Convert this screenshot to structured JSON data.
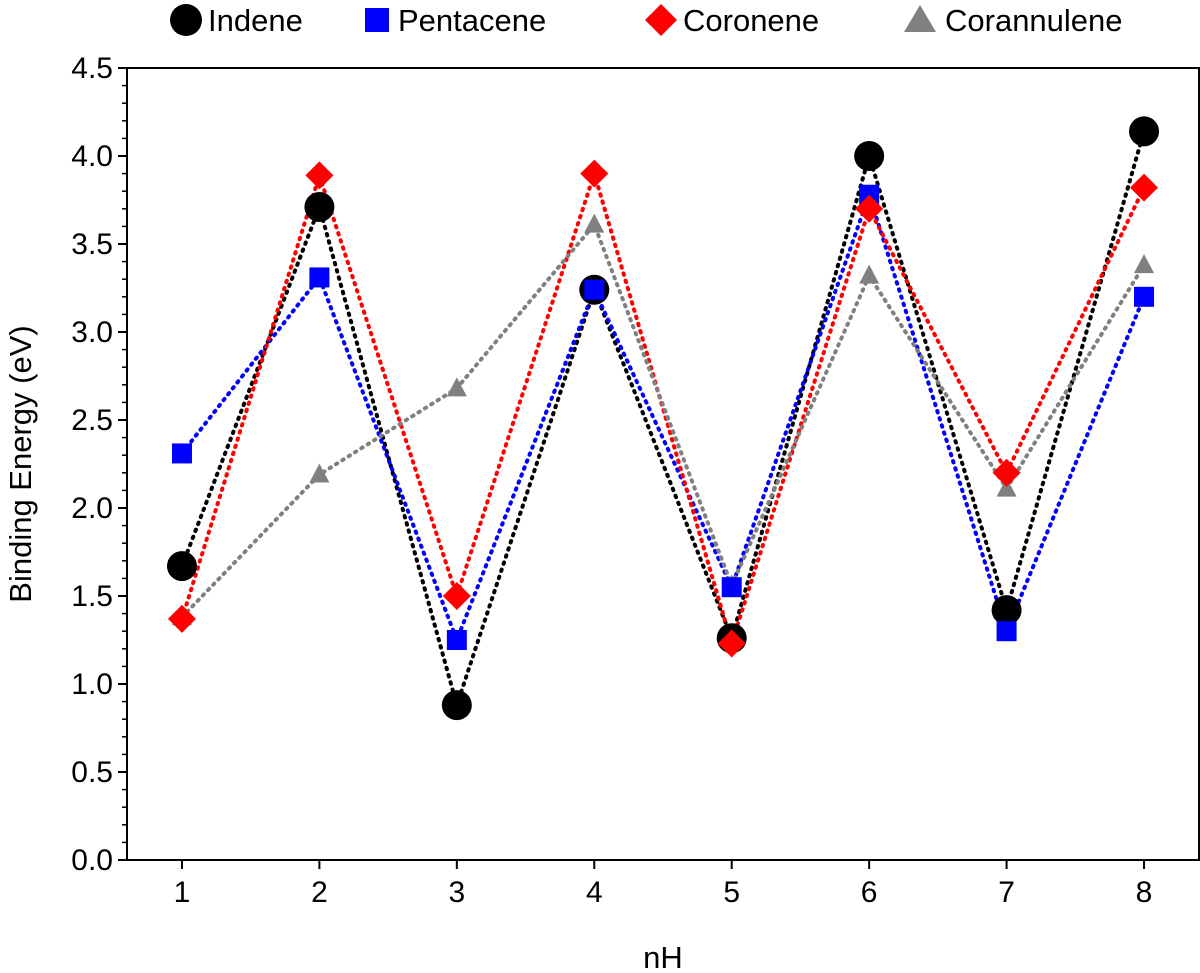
{
  "chart_data": {
    "type": "line",
    "title": "",
    "xlabel": "nH",
    "ylabel": "Binding Energy (eV)",
    "x": [
      1,
      2,
      3,
      4,
      5,
      6,
      7,
      8
    ],
    "xlim": [
      0.6,
      8.4
    ],
    "ylim": [
      0.0,
      4.5
    ],
    "x_ticks": [
      "1",
      "2",
      "3",
      "4",
      "5",
      "6",
      "7",
      "8"
    ],
    "y_ticks": [
      "0.0",
      "0.5",
      "1.0",
      "1.5",
      "2.0",
      "2.5",
      "3.0",
      "3.5",
      "4.0",
      "4.5"
    ],
    "grid": false,
    "legend_position": "top",
    "line_style": "dotted",
    "series": [
      {
        "name": "Indene",
        "color": "#000000",
        "marker": "circle",
        "values": [
          1.67,
          3.71,
          0.88,
          3.24,
          1.26,
          4.0,
          1.42,
          4.14
        ]
      },
      {
        "name": "Pentacene",
        "color": "#0000ff",
        "marker": "square",
        "values": [
          2.31,
          3.31,
          1.25,
          3.24,
          1.55,
          3.78,
          1.3,
          3.2
        ]
      },
      {
        "name": "Coronene",
        "color": "#ff0000",
        "marker": "diamond",
        "values": [
          1.37,
          3.89,
          1.5,
          3.9,
          1.23,
          3.7,
          2.2,
          3.82
        ]
      },
      {
        "name": "Corannulene",
        "color": "#808080",
        "marker": "triangle",
        "values": [
          1.38,
          2.19,
          2.68,
          3.61,
          1.56,
          3.32,
          2.11,
          3.38
        ]
      }
    ]
  }
}
